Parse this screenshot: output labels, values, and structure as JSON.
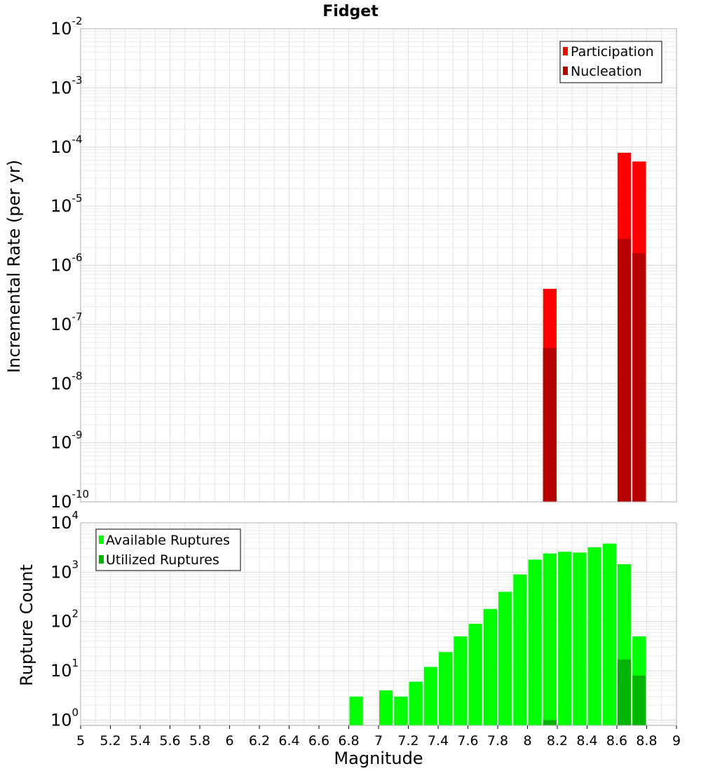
{
  "chart_data": [
    {
      "type": "bar",
      "title": "Fidget",
      "xlabel": "",
      "ylabel": "Incremental Rate (per yr)",
      "yscale": "log",
      "xlim": [
        5,
        9
      ],
      "ylim_exponents": [
        -10,
        -2
      ],
      "grid": true,
      "legend_placement": "top-right",
      "bar_width": 0.1,
      "series": [
        {
          "name": "Participation",
          "color": "#ff0000",
          "points": [
            {
              "x": 8.15,
              "y": 4e-07
            },
            {
              "x": 8.65,
              "y": 8e-05
            },
            {
              "x": 8.75,
              "y": 5.7e-05
            }
          ]
        },
        {
          "name": "Nucleation",
          "color": "#b30000",
          "points": [
            {
              "x": 8.15,
              "y": 4e-08
            },
            {
              "x": 8.65,
              "y": 2.8e-06
            },
            {
              "x": 8.75,
              "y": 1.6e-06
            }
          ]
        }
      ]
    },
    {
      "type": "bar",
      "title": "",
      "xlabel": "Magnitude",
      "ylabel": "Rupture Count",
      "yscale": "log",
      "xlim": [
        5,
        9
      ],
      "ylim_exponents": [
        0,
        4
      ],
      "ymin": 0.78,
      "grid": true,
      "legend_placement": "top-left",
      "bar_width": 0.1,
      "x_ticks": [
        "5",
        "5.2",
        "5.4",
        "5.6",
        "5.8",
        "6",
        "6.2",
        "6.4",
        "6.6",
        "6.8",
        "7",
        "7.2",
        "7.4",
        "7.6",
        "7.8",
        "8",
        "8.2",
        "8.4",
        "8.6",
        "8.8",
        "9"
      ],
      "series": [
        {
          "name": "Available Ruptures",
          "color": "#00ff00",
          "points": [
            {
              "x": 6.85,
              "y": 3
            },
            {
              "x": 7.05,
              "y": 4
            },
            {
              "x": 7.15,
              "y": 3
            },
            {
              "x": 7.25,
              "y": 6
            },
            {
              "x": 7.35,
              "y": 12
            },
            {
              "x": 7.45,
              "y": 24
            },
            {
              "x": 7.55,
              "y": 50
            },
            {
              "x": 7.65,
              "y": 90
            },
            {
              "x": 7.75,
              "y": 180
            },
            {
              "x": 7.85,
              "y": 400
            },
            {
              "x": 7.95,
              "y": 900
            },
            {
              "x": 8.05,
              "y": 1800
            },
            {
              "x": 8.15,
              "y": 2400
            },
            {
              "x": 8.25,
              "y": 2600
            },
            {
              "x": 8.35,
              "y": 2500
            },
            {
              "x": 8.45,
              "y": 3200
            },
            {
              "x": 8.55,
              "y": 3800
            },
            {
              "x": 8.65,
              "y": 1450
            },
            {
              "x": 8.75,
              "y": 50
            }
          ]
        },
        {
          "name": "Utilized Ruptures",
          "color": "#00b300",
          "points": [
            {
              "x": 8.15,
              "y": 1
            },
            {
              "x": 8.65,
              "y": 17
            },
            {
              "x": 8.75,
              "y": 8
            }
          ]
        }
      ]
    }
  ]
}
